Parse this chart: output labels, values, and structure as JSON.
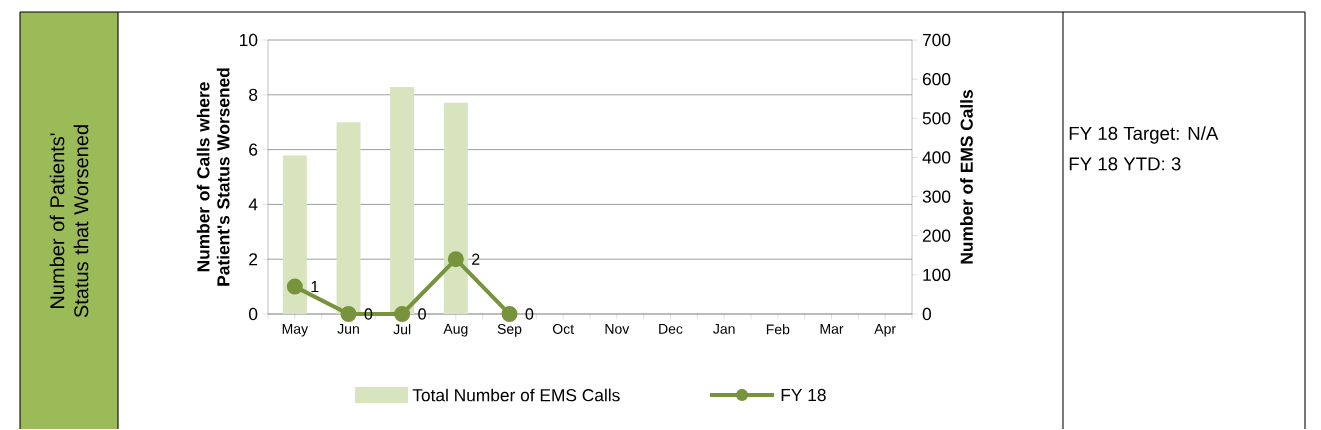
{
  "chart_data": {
    "type": "bar",
    "title": "Number of Patients' Status that Worsened",
    "categories": [
      "May",
      "Jun",
      "Jul",
      "Aug",
      "Sep",
      "Oct",
      "Nov",
      "Dec",
      "Jan",
      "Feb",
      "Mar",
      "Apr"
    ],
    "ylabel": "Number of Calls where Patient's Status Worsened",
    "y2label": "Number of EMS Calls",
    "ylim": [
      0,
      10
    ],
    "yticks": [
      0,
      2,
      4,
      6,
      8,
      10
    ],
    "y2lim": [
      0,
      700
    ],
    "y2ticks": [
      0,
      100,
      200,
      300,
      400,
      500,
      600,
      700
    ],
    "grid": "y",
    "legend": "bottom",
    "marker": "circle",
    "series": [
      {
        "name": "Total Number of EMS Calls",
        "axis": "y2",
        "color": "#d7e4bd",
        "values": [
          405,
          490,
          580,
          540,
          null,
          null,
          null,
          null,
          null,
          null,
          null,
          null
        ]
      },
      {
        "name": "FY 18",
        "type": "line",
        "color": "#77933c",
        "data_labels": true,
        "values": [
          1,
          0,
          0,
          2,
          0,
          null,
          null,
          null,
          null,
          null,
          null,
          null
        ]
      }
    ],
    "annotations": [
      "FY 18 Target:  N/A",
      "FY 18 YTD:  3"
    ]
  }
}
